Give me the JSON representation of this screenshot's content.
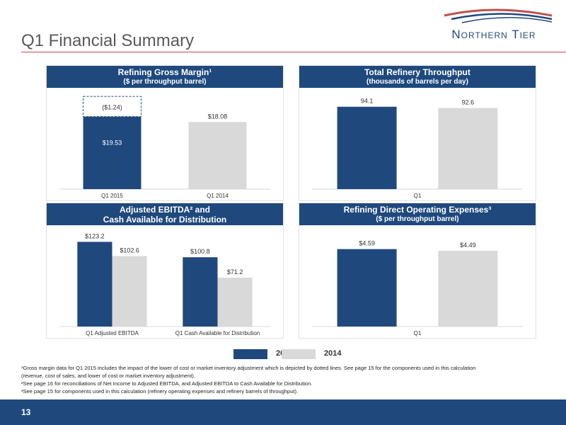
{
  "page": {
    "title": "Q1 Financial Summary",
    "logo_text": "Northern Tier",
    "page_number": "13",
    "colors": {
      "series_2015": "#1f497d",
      "series_2014": "#d9d9d9",
      "header": "#1f497d",
      "accent_rule": "#c0504d"
    }
  },
  "legend": {
    "items": [
      {
        "label": "2015",
        "color": "#1f497d"
      },
      {
        "label": "2014",
        "color": "#d9d9d9"
      }
    ]
  },
  "footnotes": {
    "line1": "¹Gross margin data for Q1 2015 includes the impact of the lower of cost or market inventory adjustment which is depicted by dotted lines.  See page 15 for the components used in this calculation",
    "line2": "(revenue, cost of sales, and lower of cost or market inventory adjustment).",
    "line3": "²See page 16 for reconciliations of Net Income to Adjusted EBITDA, and Adjusted EBITDA to Cash Available for Distribution.",
    "line4": "³See page 15 for components used in this calculation (refinery operating expenses and refinery barrels of throughput)."
  },
  "chart_data": [
    {
      "type": "bar",
      "title": "Refining Gross Margin¹",
      "subtitle": "($ per throughput barrel)",
      "categories": [
        "Q1 2015",
        "Q1 2014"
      ],
      "values": [
        19.53,
        18.08
      ],
      "value_labels": [
        "$19.53",
        "$18.08"
      ],
      "colors": [
        "#1f497d",
        "#d9d9d9"
      ],
      "adjustment": {
        "category": "Q1 2015",
        "value": 1.24,
        "label": "($1.24)",
        "style": "dashed"
      },
      "ylim": [
        0,
        25
      ]
    },
    {
      "type": "bar",
      "title": "Total Refinery Throughput",
      "subtitle": "(thousands of barrels per day)",
      "categories": [
        "Q1"
      ],
      "series": [
        {
          "name": "2015",
          "values": [
            94.1
          ],
          "value_labels": [
            "94.1"
          ],
          "color": "#1f497d"
        },
        {
          "name": "2014",
          "values": [
            92.6
          ],
          "value_labels": [
            "92.6"
          ],
          "color": "#d9d9d9"
        }
      ],
      "ylim": [
        0,
        106
      ]
    },
    {
      "type": "bar",
      "title": "Adjusted EBITDA² and",
      "subtitle": "Cash Available for Distribution",
      "categories": [
        "Q1 Adjusted EBITDA",
        "Q1 Cash Available for Distribution"
      ],
      "series": [
        {
          "name": "2015",
          "values": [
            123.2,
            100.8
          ],
          "value_labels": [
            "$123.2",
            "$100.8"
          ],
          "color": "#1f497d"
        },
        {
          "name": "2014",
          "values": [
            102.6,
            71.2
          ],
          "value_labels": [
            "$102.6",
            "$71.2"
          ],
          "color": "#d9d9d9"
        }
      ],
      "ylim": [
        0,
        135
      ]
    },
    {
      "type": "bar",
      "title": "Refining Direct Operating Expenses³",
      "subtitle": "($ per throughput barrel)",
      "categories": [
        "Q1"
      ],
      "series": [
        {
          "name": "2015",
          "values": [
            4.59
          ],
          "value_labels": [
            "$4.59"
          ],
          "color": "#1f497d"
        },
        {
          "name": "2014",
          "values": [
            4.49
          ],
          "value_labels": [
            "$4.49"
          ],
          "color": "#d9d9d9"
        }
      ],
      "ylim": [
        0,
        5.5
      ]
    }
  ]
}
